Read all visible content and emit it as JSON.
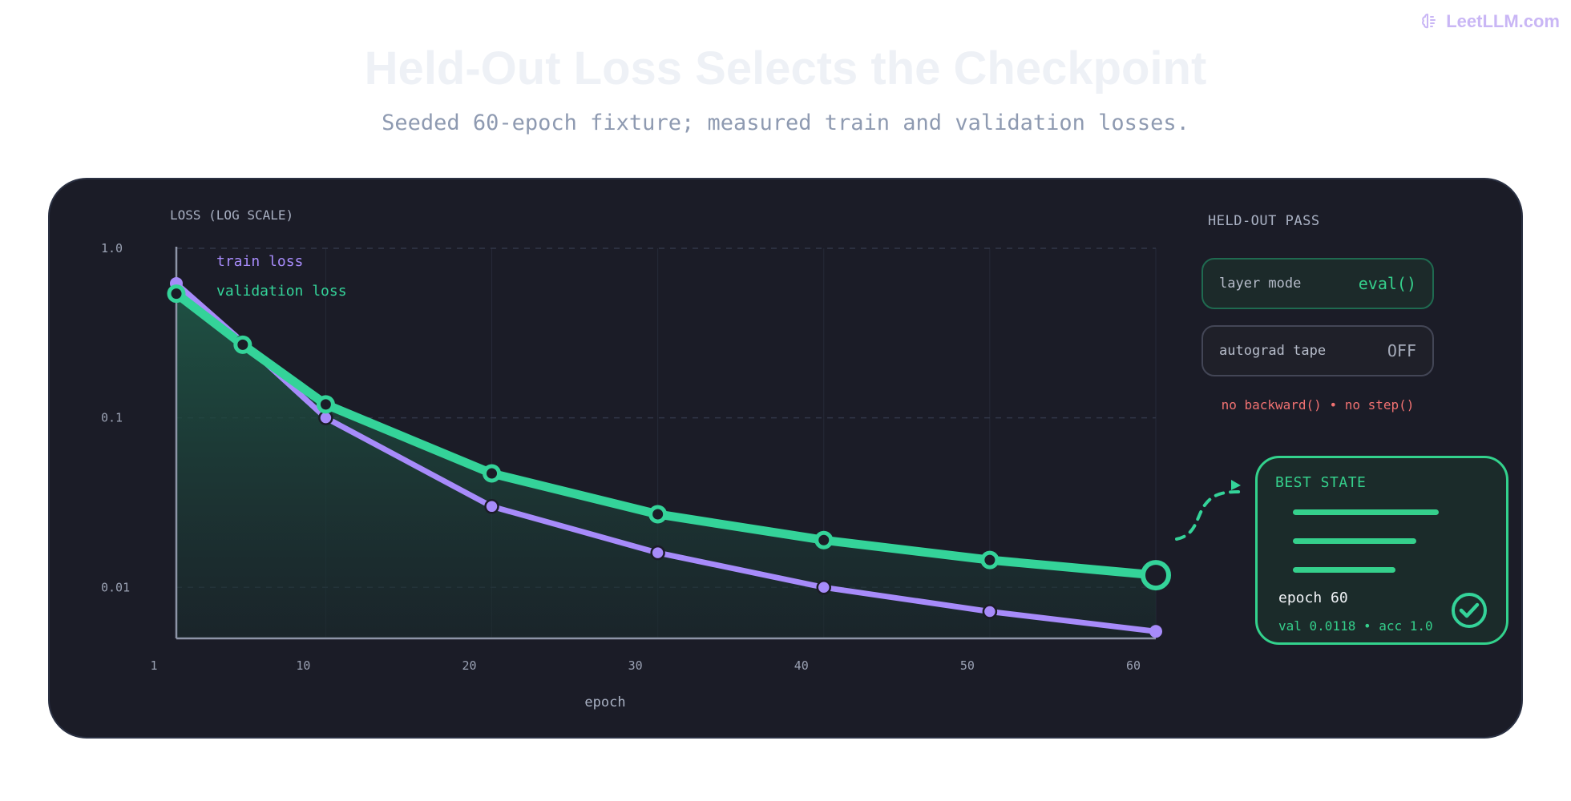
{
  "brand": {
    "name": "LeetLLM.com",
    "icon": "brain-icon",
    "color": "#c9b6f5"
  },
  "header": {
    "title": "Held-Out Loss Selects the Checkpoint",
    "subtitle": "Seeded 60-epoch fixture; measured train and validation losses."
  },
  "chart_data": {
    "type": "line",
    "ylabel": "LOSS (LOG SCALE)",
    "xlabel": "epoch",
    "yscale": "log",
    "ylim": [
      0.005,
      1.0
    ],
    "xlim": [
      1,
      60
    ],
    "yticks": [
      {
        "value": 1.0,
        "label": "1.0"
      },
      {
        "value": 0.1,
        "label": "0.1"
      },
      {
        "value": 0.01,
        "label": "0.01"
      }
    ],
    "xticks": [
      1,
      10,
      20,
      30,
      40,
      50,
      60
    ],
    "grid": true,
    "legend_position": "top-left",
    "series": [
      {
        "name": "train loss",
        "color": "#a78bfa",
        "x": [
          1,
          5,
          10,
          20,
          30,
          40,
          50,
          60
        ],
        "y": [
          0.62,
          0.28,
          0.1,
          0.03,
          0.016,
          0.01,
          0.0072,
          0.0055
        ]
      },
      {
        "name": "validation loss",
        "color": "#34d399",
        "x": [
          1,
          5,
          10,
          20,
          30,
          40,
          50,
          60
        ],
        "y": [
          0.54,
          0.27,
          0.12,
          0.047,
          0.027,
          0.019,
          0.0145,
          0.0118
        ]
      }
    ],
    "highlight": {
      "series": "validation loss",
      "x": 60
    }
  },
  "held_out": {
    "label": "HELD-OUT PASS",
    "rows": [
      {
        "label": "layer mode",
        "value": "eval()"
      },
      {
        "label": "autograd tape",
        "value": "OFF"
      }
    ],
    "note": "no backward() • no step()"
  },
  "best_state": {
    "title": "BEST STATE",
    "epoch_label": "epoch 60",
    "stats": "val 0.0118 • acc 1.0",
    "icon": "check-circle-icon"
  }
}
